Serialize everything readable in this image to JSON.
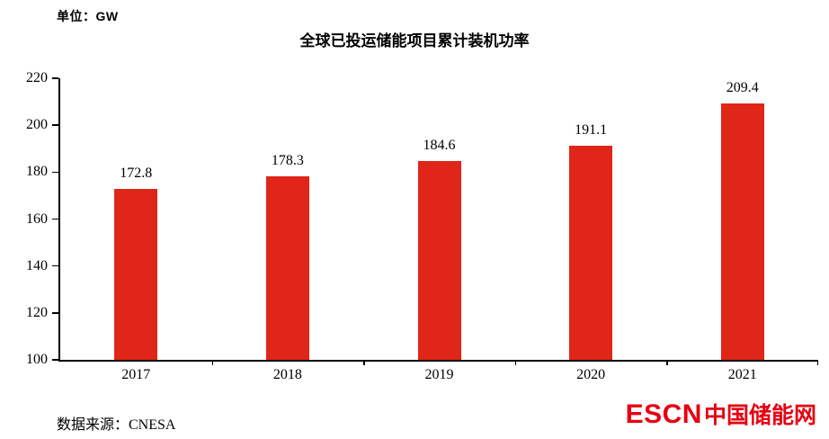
{
  "unit_label": "单位：GW",
  "source_label": "数据来源：CNESA",
  "logo": {
    "escn": "ESCN",
    "cn": "中国储能网"
  },
  "colors": {
    "bar": "#e02519",
    "logo": "#e60012",
    "axis": "#000000",
    "background": "#ffffff"
  },
  "chart_data": {
    "type": "bar",
    "title": "全球已投运储能项目累计装机功率",
    "unit": "GW",
    "categories": [
      "2017",
      "2018",
      "2019",
      "2020",
      "2021"
    ],
    "values": [
      172.8,
      178.3,
      184.6,
      191.1,
      209.4
    ],
    "xlabel": "",
    "ylabel": "GW",
    "ylim": [
      100,
      220
    ],
    "yticks": [
      100,
      120,
      140,
      160,
      180,
      200,
      220
    ],
    "grid": false,
    "legend": false,
    "source": "CNESA"
  }
}
